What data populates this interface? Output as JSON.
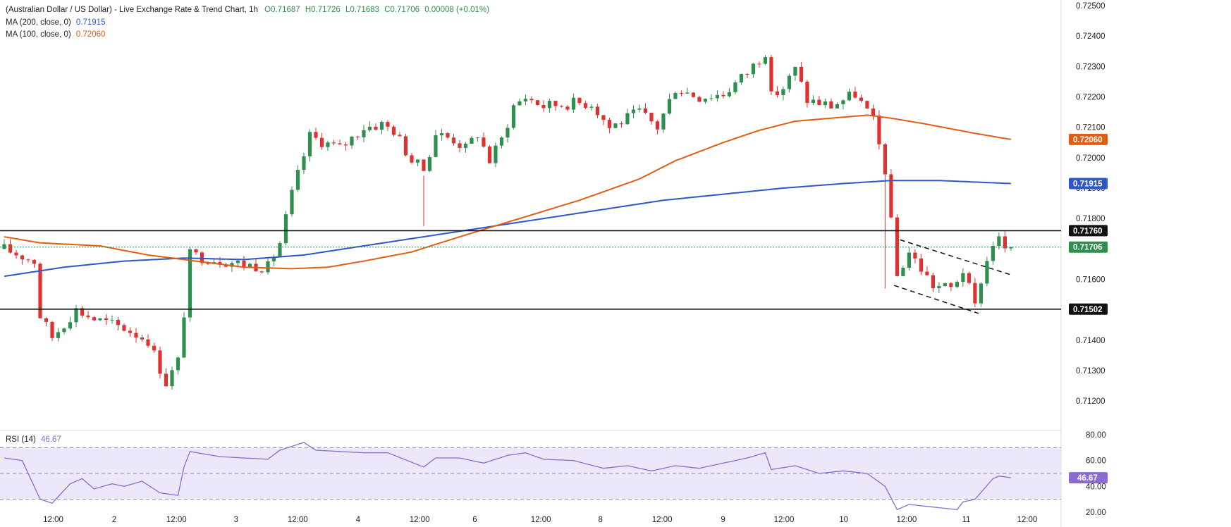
{
  "header": {
    "title": "(Australian Dollar / US Dollar) - Live Exchange Rate & Trend Chart, 1h",
    "open": "O0.71687",
    "high": "H0.71726",
    "low": "L0.71683",
    "close": "C0.71706",
    "change": "0.00008 (+0.01%)"
  },
  "ma200": {
    "label": "MA (200, close, 0)",
    "value": "0.71915"
  },
  "ma100": {
    "label": "MA (100, close, 0)",
    "value": "0.72060"
  },
  "rsi": {
    "label": "RSI (14)",
    "value": "46.67"
  },
  "colors": {
    "up": "#2f8f4e",
    "down": "#e03131",
    "ma200": "#2f56c6",
    "ma100": "#e25d12",
    "rsi": "#8a6bd0",
    "rsi_band": "#ece8fa"
  },
  "chart_data": {
    "type": "candlestick",
    "timeframe": "1h",
    "x_ticks": [
      "12:00",
      "2",
      "12:00",
      "3",
      "12:00",
      "4",
      "12:00",
      "6",
      "12:00",
      "8",
      "12:00",
      "9",
      "12:00",
      "10",
      "12:00",
      "11",
      "12:00"
    ],
    "price_ticks": [
      "0.72500",
      "0.72400",
      "0.72300",
      "0.72200",
      "0.72100",
      "0.72000",
      "0.71900",
      "0.71800",
      "0.71600",
      "0.71500",
      "0.71400",
      "0.71300",
      "0.71200"
    ],
    "ylim": [
      0.7111,
      0.725
    ],
    "rsi_ticks": [
      "80.00",
      "60.00",
      "40.00",
      "20.00"
    ],
    "rsi_levels": [
      70,
      50,
      30
    ],
    "horizontal_lines": [
      0.7176,
      0.71502
    ],
    "price_labels": [
      {
        "value": 0.7206,
        "text": "0.72060",
        "color": "#e25d12"
      },
      {
        "value": 0.71915,
        "text": "0.71915",
        "color": "#2f56c6"
      },
      {
        "value": 0.7176,
        "text": "0.71760",
        "color": "#111111"
      },
      {
        "value": 0.71706,
        "text": "0.71706",
        "color": "#2f8f4e"
      },
      {
        "value": 0.71502,
        "text": "0.71502",
        "color": "#111111"
      }
    ],
    "rsi_label": {
      "value": 46.67,
      "text": "46.67"
    },
    "channel": [
      {
        "from": [
          149.5,
          0.7173
        ],
        "to": [
          168.3,
          0.71613
        ]
      },
      {
        "from": [
          148.5,
          0.7158
        ],
        "to": [
          162.6,
          0.71488
        ]
      }
    ],
    "anchors": [
      [
        0,
        0.717
      ],
      [
        5,
        0.7166
      ],
      [
        6,
        0.7148
      ],
      [
        8,
        0.7141
      ],
      [
        12,
        0.715
      ],
      [
        15,
        0.7147
      ],
      [
        20,
        0.7144
      ],
      [
        24,
        0.714
      ],
      [
        27,
        0.7126
      ],
      [
        29,
        0.7133
      ],
      [
        30,
        0.7149
      ],
      [
        31,
        0.7168
      ],
      [
        40,
        0.7165
      ],
      [
        44,
        0.7164
      ],
      [
        46,
        0.7172
      ],
      [
        48,
        0.7188
      ],
      [
        51,
        0.7207
      ],
      [
        56,
        0.7203
      ],
      [
        60,
        0.721
      ],
      [
        63,
        0.7211
      ],
      [
        65,
        0.7209
      ],
      [
        68,
        0.7199
      ],
      [
        70,
        0.7196
      ],
      [
        72,
        0.7208
      ],
      [
        75,
        0.7206
      ],
      [
        77,
        0.7203
      ],
      [
        79,
        0.7208
      ],
      [
        81,
        0.7199
      ],
      [
        83,
        0.7206
      ],
      [
        85,
        0.7217
      ],
      [
        87,
        0.722
      ],
      [
        90,
        0.7217
      ],
      [
        95,
        0.7218
      ],
      [
        98,
        0.7218
      ],
      [
        101,
        0.721
      ],
      [
        106,
        0.7215
      ],
      [
        109,
        0.721
      ],
      [
        112,
        0.7223
      ],
      [
        116,
        0.722
      ],
      [
        120,
        0.7221
      ],
      [
        124,
        0.7228
      ],
      [
        127,
        0.7235
      ],
      [
        128,
        0.722
      ],
      [
        130,
        0.7223
      ],
      [
        132,
        0.7229
      ],
      [
        134,
        0.7219
      ],
      [
        138,
        0.7217
      ],
      [
        142,
        0.7221
      ],
      [
        145,
        0.7212
      ],
      [
        147,
        0.7196
      ],
      [
        149,
        0.7161
      ],
      [
        151,
        0.7169
      ],
      [
        155,
        0.7158
      ],
      [
        158,
        0.7157
      ],
      [
        160,
        0.7163
      ],
      [
        162,
        0.7151
      ],
      [
        163,
        0.716
      ],
      [
        165,
        0.7172
      ],
      [
        166,
        0.7173
      ],
      [
        167,
        0.717
      ],
      [
        168,
        0.71706
      ]
    ],
    "spikes": [
      {
        "index": 70,
        "high": 0.71775
      },
      {
        "index": 147,
        "low": 0.7157
      }
    ],
    "ma100_points": [
      [
        0,
        0.7174
      ],
      [
        6,
        0.7172
      ],
      [
        16,
        0.7171
      ],
      [
        24,
        0.7168
      ],
      [
        32,
        0.7166
      ],
      [
        40,
        0.7164
      ],
      [
        48,
        0.71635
      ],
      [
        54,
        0.7164
      ],
      [
        60,
        0.7166
      ],
      [
        68,
        0.7169
      ],
      [
        76,
        0.7174
      ],
      [
        86,
        0.718
      ],
      [
        96,
        0.7186
      ],
      [
        106,
        0.7193
      ],
      [
        112,
        0.7199
      ],
      [
        120,
        0.7205
      ],
      [
        126,
        0.7209
      ],
      [
        132,
        0.7212
      ],
      [
        138,
        0.7213
      ],
      [
        144,
        0.7214
      ],
      [
        148,
        0.7213
      ],
      [
        154,
        0.7211
      ],
      [
        162,
        0.7208
      ],
      [
        168,
        0.7206
      ]
    ],
    "ma200_points": [
      [
        0,
        0.7161
      ],
      [
        10,
        0.7164
      ],
      [
        20,
        0.7166
      ],
      [
        30,
        0.7167
      ],
      [
        40,
        0.71665
      ],
      [
        50,
        0.7168
      ],
      [
        60,
        0.7171
      ],
      [
        70,
        0.7174
      ],
      [
        80,
        0.7177
      ],
      [
        90,
        0.718
      ],
      [
        100,
        0.7183
      ],
      [
        110,
        0.7186
      ],
      [
        120,
        0.7188
      ],
      [
        130,
        0.719
      ],
      [
        140,
        0.71915
      ],
      [
        148,
        0.71925
      ],
      [
        156,
        0.71925
      ],
      [
        168,
        0.71915
      ]
    ],
    "rsi_points": [
      [
        0,
        62
      ],
      [
        3,
        60
      ],
      [
        6,
        30
      ],
      [
        8,
        27
      ],
      [
        11,
        42
      ],
      [
        13,
        46
      ],
      [
        15,
        38
      ],
      [
        18,
        42
      ],
      [
        20,
        40
      ],
      [
        23,
        44
      ],
      [
        26,
        35
      ],
      [
        29,
        33
      ],
      [
        30,
        55
      ],
      [
        31,
        67
      ],
      [
        36,
        63
      ],
      [
        40,
        62
      ],
      [
        44,
        61
      ],
      [
        46,
        68
      ],
      [
        50,
        74
      ],
      [
        52,
        68
      ],
      [
        56,
        67
      ],
      [
        60,
        66
      ],
      [
        64,
        66
      ],
      [
        70,
        55
      ],
      [
        72,
        62
      ],
      [
        76,
        62
      ],
      [
        80,
        58
      ],
      [
        84,
        64
      ],
      [
        87,
        66
      ],
      [
        90,
        61
      ],
      [
        95,
        60
      ],
      [
        100,
        54
      ],
      [
        104,
        56
      ],
      [
        108,
        52
      ],
      [
        112,
        56
      ],
      [
        116,
        54
      ],
      [
        120,
        58
      ],
      [
        124,
        62
      ],
      [
        127,
        66
      ],
      [
        128,
        53
      ],
      [
        132,
        56
      ],
      [
        136,
        50
      ],
      [
        140,
        52
      ],
      [
        144,
        50
      ],
      [
        147,
        40
      ],
      [
        149,
        22
      ],
      [
        151,
        26
      ],
      [
        155,
        24
      ],
      [
        159,
        22
      ],
      [
        160,
        28
      ],
      [
        162,
        30
      ],
      [
        165,
        46
      ],
      [
        166,
        48
      ],
      [
        168,
        46.67
      ]
    ]
  }
}
